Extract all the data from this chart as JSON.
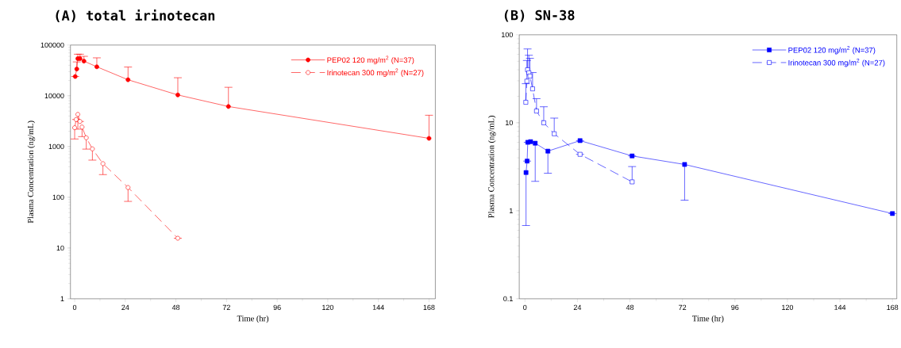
{
  "chart_data": [
    {
      "type": "line",
      "title": "(A) total irinotecan",
      "xlabel": "Time (hr)",
      "ylabel": "Plasma Concentration (ng/mL)",
      "log": "y",
      "legend": "top right",
      "xlim": [
        -2,
        171
      ],
      "xticks": [
        0,
        24,
        48,
        72,
        96,
        120,
        144,
        168
      ],
      "ylim": [
        1,
        100000
      ],
      "yticks": [
        1,
        10,
        100,
        1000,
        10000,
        100000
      ],
      "series": [
        {
          "name": "PEP02 120 mg/m$^{2}$ (N=37)",
          "color": "#ff0000",
          "marker": "circle",
          "line_style": "solid",
          "x": [
            0.25,
            1,
            1.5,
            2.5,
            4.4,
            10.5,
            25.3,
            48.9,
            72.9,
            168
          ],
          "values": [
            24000,
            33700,
            54000,
            54000,
            48200,
            37300,
            20700,
            10400,
            6150,
            1450
          ],
          "errors": [
            null,
            [
              33700,
              46500
            ],
            [
              54000,
              66000
            ],
            [
              54000,
              66000
            ],
            [
              48200,
              60000
            ],
            [
              37300,
              56000
            ],
            [
              20700,
              36900
            ],
            [
              10400,
              22700
            ],
            [
              6150,
              14700
            ],
            [
              1450,
              4140
            ]
          ]
        },
        {
          "name": "Irinotecan 300 mg/m$^{2}$ (N=27)",
          "color": "#ff0000",
          "marker": "circle",
          "line_style": "dashed",
          "x": [
            0,
            0.7,
            1.5,
            2.5,
            3.5,
            5.5,
            8.4,
            13.4,
            25.3,
            48.9
          ],
          "values": [
            2350,
            3410,
            4300,
            3120,
            2420,
            1490,
            900,
            460,
            156,
            15.6
          ],
          "errors": [
            [
              1410,
              2350
            ],
            null,
            [
              2200,
              4300
            ],
            null,
            [
              1570,
              2420
            ],
            [
              890,
              1490
            ],
            [
              540,
              900
            ],
            [
              280,
              460
            ],
            [
              83,
              156
            ],
            null
          ]
        }
      ]
    },
    {
      "type": "line",
      "title": "(B) SN-38",
      "xlabel": "Time (hr)",
      "ylabel": "Plasma Concentration (ng/mL)",
      "log": "y",
      "legend": "top right",
      "xlim": [
        -2.6,
        170
      ],
      "xticks": [
        0,
        24,
        48,
        72,
        96,
        120,
        144,
        168
      ],
      "ylim": [
        0.1,
        100
      ],
      "yticks": [
        0.1,
        1,
        10,
        100
      ],
      "series": [
        {
          "name": "PEP02 120 mg/m$^{2}$ (N=37)",
          "color": "#0000ff",
          "marker": "square",
          "line_style": "solid",
          "x": [
            0.5,
            1,
            1.3,
            2.6,
            4.7,
            10.5,
            25.2,
            49,
            73,
            168
          ],
          "values": [
            2.72,
            3.67,
            6.0,
            6.1,
            5.86,
            4.76,
            6.27,
            4.2,
            3.36,
            0.93
          ],
          "errors": [
            [
              0.68,
              2.72
            ],
            null,
            null,
            null,
            [
              2.16,
              5.86
            ],
            [
              2.67,
              4.76
            ],
            null,
            null,
            [
              1.32,
              3.36
            ],
            null
          ]
        },
        {
          "name": "Irinotecan 300 mg/m$^{2}$ (N=27)",
          "color": "#0000ff",
          "marker": "square",
          "line_style": "dashed",
          "x": [
            0.4,
            0.9,
            1.2,
            1.8,
            2.3,
            3.5,
            5.3,
            8.6,
            13.4,
            25.2,
            49
          ],
          "values": [
            17.1,
            29.7,
            40,
            37,
            34,
            24.3,
            13.6,
            10,
            7.5,
            4.38,
            2.13
          ],
          "errors": [
            [
              17.1,
              27.8
            ],
            [
              29.7,
              51
            ],
            [
              40,
              69
            ],
            [
              37,
              58.5
            ],
            [
              34,
              54
            ],
            [
              24.3,
              37.2
            ],
            [
              13.6,
              18.8
            ],
            [
              10,
              15.2
            ],
            [
              7.5,
              11.3
            ],
            null,
            [
              2.13,
              3.18
            ]
          ]
        }
      ]
    }
  ]
}
